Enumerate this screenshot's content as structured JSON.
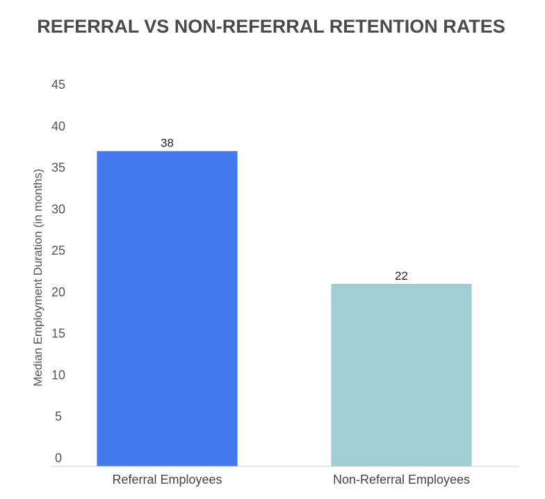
{
  "chart_data": {
    "type": "bar",
    "title": "REFERRAL VS NON-REFERRAL RETENTION RATES",
    "xlabel": "",
    "ylabel": "Median Employment Duration (in months)",
    "categories": [
      "Referral Employees",
      "Non-Referral Employees"
    ],
    "values": [
      38,
      22
    ],
    "data_labels": [
      "38",
      "22"
    ],
    "ylim": [
      0,
      45
    ],
    "yticks": [
      0,
      5,
      10,
      15,
      20,
      25,
      30,
      35,
      40,
      45
    ],
    "grid": false,
    "legend": "none",
    "colors": [
      "#4479f0",
      "#9fced3"
    ],
    "title_color": "#4a4a4a",
    "axis_line_color": "#cccccc"
  }
}
